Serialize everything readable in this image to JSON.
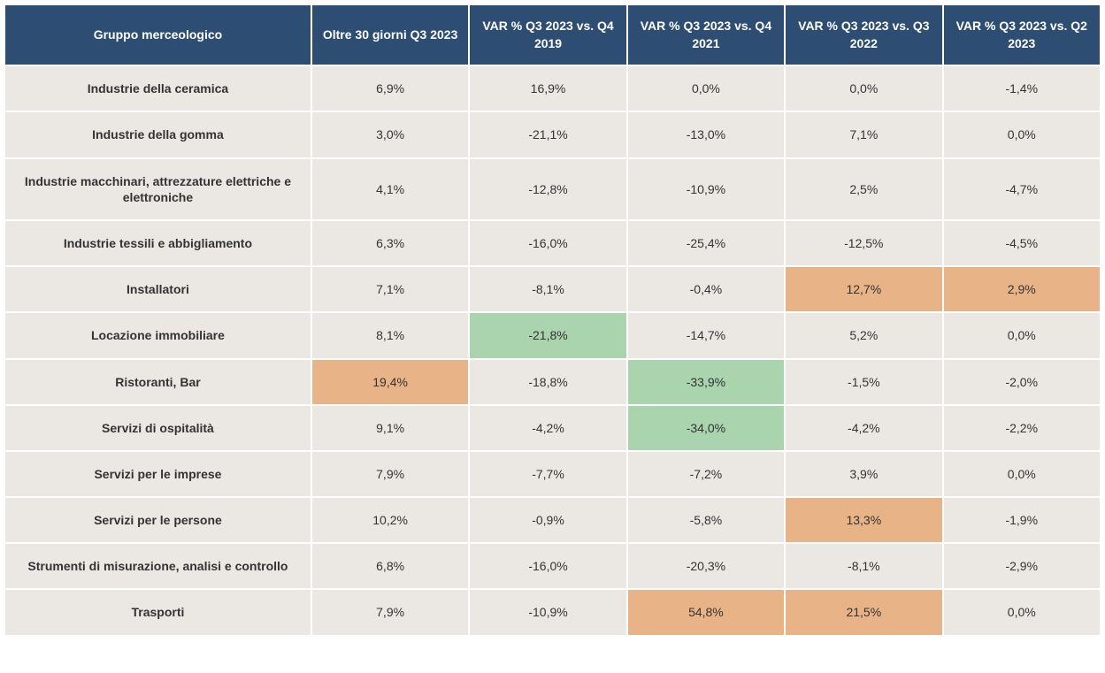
{
  "table": {
    "type": "table",
    "header_bg": "#2d4e72",
    "header_text_color": "#ffffff",
    "row_bg": "#ebe8e3",
    "border_color": "#ffffff",
    "highlight_orange": "#e8b487",
    "highlight_green": "#a9d4ae",
    "font_family": "Arial",
    "header_fontsize": 14,
    "cell_fontsize": 14,
    "columns": [
      "Gruppo merceologico",
      "Oltre 30 giorni Q3 2023",
      "VAR % Q3 2023 vs. Q4 2019",
      "VAR % Q3 2023 vs. Q4 2021",
      "VAR % Q3 2023 vs. Q3 2022",
      "VAR % Q3 2023 vs. Q2 2023"
    ],
    "rows": [
      {
        "label": "Industrie della ceramica",
        "cells": [
          {
            "v": "6,9%",
            "hl": null
          },
          {
            "v": "16,9%",
            "hl": null
          },
          {
            "v": "0,0%",
            "hl": null
          },
          {
            "v": "0,0%",
            "hl": null
          },
          {
            "v": "-1,4%",
            "hl": null
          }
        ]
      },
      {
        "label": "Industrie della gomma",
        "cells": [
          {
            "v": "3,0%",
            "hl": null
          },
          {
            "v": "-21,1%",
            "hl": null
          },
          {
            "v": "-13,0%",
            "hl": null
          },
          {
            "v": "7,1%",
            "hl": null
          },
          {
            "v": "0,0%",
            "hl": null
          }
        ]
      },
      {
        "label": "Industrie macchinari, attrezzature elettriche e elettroniche",
        "cells": [
          {
            "v": "4,1%",
            "hl": null
          },
          {
            "v": "-12,8%",
            "hl": null
          },
          {
            "v": "-10,9%",
            "hl": null
          },
          {
            "v": "2,5%",
            "hl": null
          },
          {
            "v": "-4,7%",
            "hl": null
          }
        ]
      },
      {
        "label": "Industrie tessili e abbigliamento",
        "cells": [
          {
            "v": "6,3%",
            "hl": null
          },
          {
            "v": "-16,0%",
            "hl": null
          },
          {
            "v": "-25,4%",
            "hl": null
          },
          {
            "v": "-12,5%",
            "hl": null
          },
          {
            "v": "-4,5%",
            "hl": null
          }
        ]
      },
      {
        "label": "Installatori",
        "cells": [
          {
            "v": "7,1%",
            "hl": null
          },
          {
            "v": "-8,1%",
            "hl": null
          },
          {
            "v": "-0,4%",
            "hl": null
          },
          {
            "v": "12,7%",
            "hl": "orange"
          },
          {
            "v": "2,9%",
            "hl": "orange"
          }
        ]
      },
      {
        "label": "Locazione immobiliare",
        "cells": [
          {
            "v": "8,1%",
            "hl": null
          },
          {
            "v": "-21,8%",
            "hl": "green"
          },
          {
            "v": "-14,7%",
            "hl": null
          },
          {
            "v": "5,2%",
            "hl": null
          },
          {
            "v": "0,0%",
            "hl": null
          }
        ]
      },
      {
        "label": "Ristoranti, Bar",
        "cells": [
          {
            "v": "19,4%",
            "hl": "orange"
          },
          {
            "v": "-18,8%",
            "hl": null
          },
          {
            "v": "-33,9%",
            "hl": "green"
          },
          {
            "v": "-1,5%",
            "hl": null
          },
          {
            "v": "-2,0%",
            "hl": null
          }
        ]
      },
      {
        "label": "Servizi di ospitalità",
        "cells": [
          {
            "v": "9,1%",
            "hl": null
          },
          {
            "v": "-4,2%",
            "hl": null
          },
          {
            "v": "-34,0%",
            "hl": "green"
          },
          {
            "v": "-4,2%",
            "hl": null
          },
          {
            "v": "-2,2%",
            "hl": null
          }
        ]
      },
      {
        "label": "Servizi per le imprese",
        "cells": [
          {
            "v": "7,9%",
            "hl": null
          },
          {
            "v": "-7,7%",
            "hl": null
          },
          {
            "v": "-7,2%",
            "hl": null
          },
          {
            "v": "3,9%",
            "hl": null
          },
          {
            "v": "0,0%",
            "hl": null
          }
        ]
      },
      {
        "label": "Servizi per le persone",
        "cells": [
          {
            "v": "10,2%",
            "hl": null
          },
          {
            "v": "-0,9%",
            "hl": null
          },
          {
            "v": "-5,8%",
            "hl": null
          },
          {
            "v": "13,3%",
            "hl": "orange"
          },
          {
            "v": "-1,9%",
            "hl": null
          }
        ]
      },
      {
        "label": "Strumenti di misurazione, analisi e controllo",
        "cells": [
          {
            "v": "6,8%",
            "hl": null
          },
          {
            "v": "-16,0%",
            "hl": null
          },
          {
            "v": "-20,3%",
            "hl": null
          },
          {
            "v": "-8,1%",
            "hl": null
          },
          {
            "v": "-2,9%",
            "hl": null
          }
        ]
      },
      {
        "label": "Trasporti",
        "cells": [
          {
            "v": "7,9%",
            "hl": null
          },
          {
            "v": "-10,9%",
            "hl": null
          },
          {
            "v": "54,8%",
            "hl": "orange"
          },
          {
            "v": "21,5%",
            "hl": "orange"
          },
          {
            "v": "0,0%",
            "hl": null
          }
        ]
      }
    ]
  }
}
